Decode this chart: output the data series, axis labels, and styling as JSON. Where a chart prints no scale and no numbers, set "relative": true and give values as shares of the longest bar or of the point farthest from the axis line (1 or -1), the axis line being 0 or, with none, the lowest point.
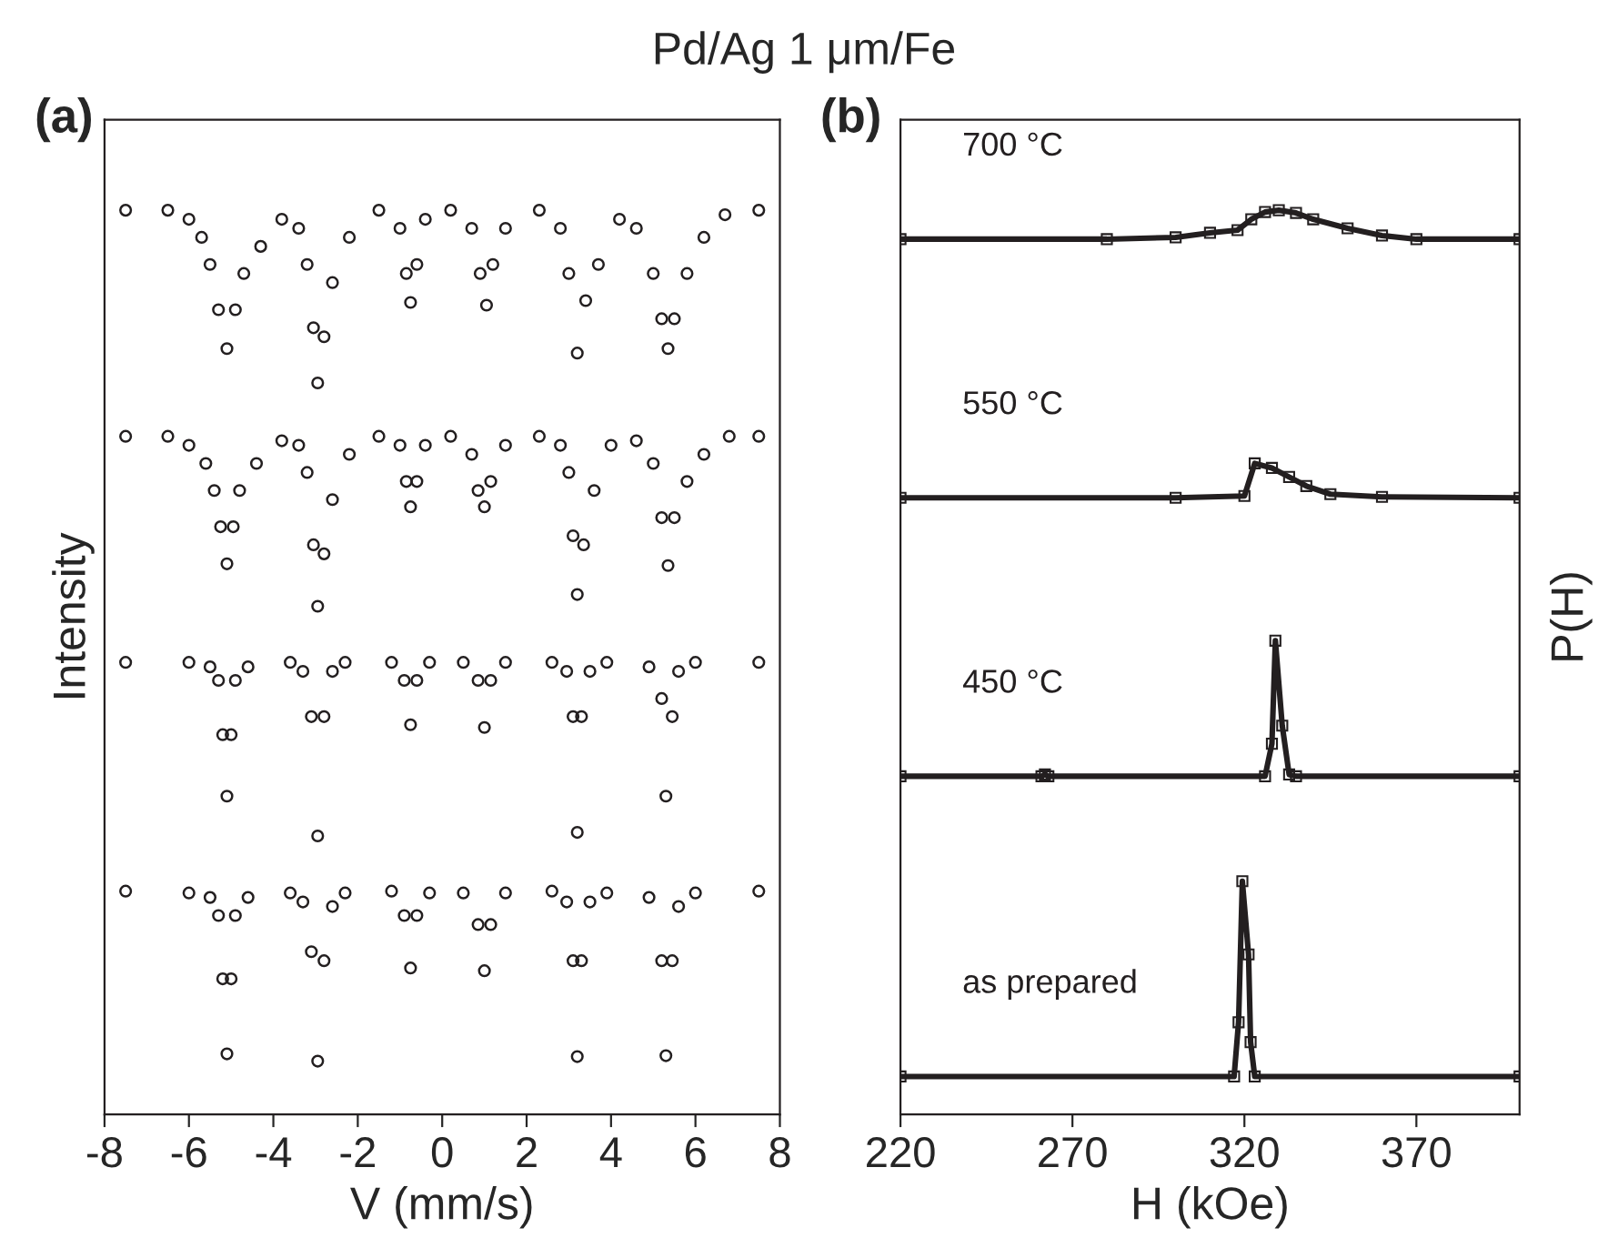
{
  "chart_data": [
    {
      "type": "scatter",
      "title": "Pd/Ag 1 μm/Fe",
      "annotations": [
        "(a)"
      ],
      "xlabel": "V (mm/s)",
      "ylabel": "Intensity",
      "relative": true,
      "xlim": [
        -8,
        8
      ],
      "xticks": [
        -8,
        -6,
        -4,
        -2,
        0,
        2,
        4,
        6,
        8
      ],
      "tick_labels": "x",
      "grid": false,
      "legend": false,
      "marker": "circle",
      "series": [
        {
          "color": "#231f20",
          "x": [
            -7.5,
            -6.5,
            -6.0,
            -5.7,
            -5.5,
            -5.3,
            -5.1,
            -4.9,
            -4.7,
            -4.3,
            -3.8,
            -3.4,
            -3.2,
            -3.05,
            -2.95,
            -2.8,
            -2.6,
            -2.2,
            -1.5,
            -1.0,
            -0.85,
            -0.75,
            -0.6,
            -0.4,
            0.2,
            0.7,
            0.9,
            1.05,
            1.2,
            1.5,
            2.3,
            2.8,
            3.0,
            3.2,
            3.4,
            3.7,
            4.2,
            4.6,
            5.0,
            5.2,
            5.35,
            5.5,
            5.8,
            6.2,
            6.7,
            7.5
          ],
          "values": [
            1.0,
            1.0,
            0.99,
            0.97,
            0.94,
            0.89,
            0.847,
            0.89,
            0.93,
            0.96,
            0.99,
            0.98,
            0.94,
            0.87,
            0.809,
            0.86,
            0.92,
            0.97,
            1.0,
            0.98,
            0.93,
            0.898,
            0.94,
            0.99,
            1.0,
            0.98,
            0.93,
            0.895,
            0.94,
            0.98,
            1.0,
            0.98,
            0.93,
            0.842,
            0.9,
            0.94,
            0.99,
            0.98,
            0.93,
            0.88,
            0.847,
            0.88,
            0.93,
            0.97,
            0.995,
            1.0
          ]
        },
        {
          "color": "#231f20",
          "x": [
            -7.5,
            -6.5,
            -6.0,
            -5.6,
            -5.4,
            -5.25,
            -5.1,
            -4.95,
            -4.8,
            -4.4,
            -3.8,
            -3.4,
            -3.2,
            -3.05,
            -2.95,
            -2.8,
            -2.6,
            -2.2,
            -1.5,
            -1.0,
            -0.85,
            -0.75,
            -0.6,
            -0.4,
            0.2,
            0.7,
            0.85,
            1.0,
            1.15,
            1.5,
            2.3,
            2.8,
            3.0,
            3.1,
            3.2,
            3.35,
            3.6,
            4.0,
            4.6,
            5.0,
            5.2,
            5.35,
            5.5,
            5.8,
            6.2,
            6.8,
            7.5
          ],
          "values": [
            0.75,
            0.75,
            0.74,
            0.72,
            0.69,
            0.65,
            0.609,
            0.65,
            0.69,
            0.72,
            0.745,
            0.74,
            0.71,
            0.63,
            0.562,
            0.62,
            0.68,
            0.73,
            0.75,
            0.74,
            0.7,
            0.672,
            0.7,
            0.74,
            0.75,
            0.73,
            0.69,
            0.672,
            0.7,
            0.74,
            0.75,
            0.74,
            0.71,
            0.64,
            0.575,
            0.63,
            0.69,
            0.74,
            0.745,
            0.72,
            0.66,
            0.607,
            0.66,
            0.7,
            0.73,
            0.75,
            0.75
          ]
        },
        {
          "color": "#231f20",
          "x": [
            -7.5,
            -6.0,
            -5.5,
            -5.3,
            -5.2,
            -5.1,
            -5.0,
            -4.9,
            -4.6,
            -3.6,
            -3.3,
            -3.1,
            -2.95,
            -2.8,
            -2.6,
            -2.3,
            -1.2,
            -0.9,
            -0.75,
            -0.6,
            -0.3,
            0.5,
            0.85,
            1.0,
            1.15,
            1.5,
            2.6,
            2.95,
            3.1,
            3.2,
            3.3,
            3.5,
            3.9,
            4.9,
            5.2,
            5.3,
            5.45,
            5.6,
            6.0,
            7.5
          ],
          "values": [
            0.5,
            0.5,
            0.495,
            0.48,
            0.42,
            0.352,
            0.42,
            0.48,
            0.495,
            0.5,
            0.49,
            0.44,
            0.308,
            0.44,
            0.49,
            0.5,
            0.5,
            0.48,
            0.431,
            0.48,
            0.5,
            0.5,
            0.48,
            0.428,
            0.48,
            0.5,
            0.5,
            0.49,
            0.44,
            0.312,
            0.44,
            0.49,
            0.5,
            0.495,
            0.46,
            0.352,
            0.44,
            0.49,
            0.5,
            0.5
          ]
        },
        {
          "color": "#231f20",
          "x": [
            -7.5,
            -6.0,
            -5.5,
            -5.3,
            -5.2,
            -5.1,
            -5.0,
            -4.9,
            -4.6,
            -3.6,
            -3.3,
            -3.1,
            -2.95,
            -2.8,
            -2.6,
            -2.3,
            -1.2,
            -0.9,
            -0.75,
            -0.6,
            -0.3,
            0.5,
            0.85,
            1.0,
            1.15,
            1.5,
            2.6,
            2.95,
            3.1,
            3.2,
            3.3,
            3.5,
            3.9,
            4.9,
            5.2,
            5.3,
            5.45,
            5.6,
            6.0,
            7.5
          ],
          "values": [
            0.247,
            0.245,
            0.24,
            0.22,
            0.15,
            0.067,
            0.15,
            0.22,
            0.24,
            0.245,
            0.235,
            0.18,
            0.059,
            0.17,
            0.23,
            0.245,
            0.247,
            0.22,
            0.162,
            0.22,
            0.245,
            0.245,
            0.21,
            0.159,
            0.21,
            0.245,
            0.247,
            0.235,
            0.17,
            0.064,
            0.17,
            0.235,
            0.245,
            0.24,
            0.17,
            0.065,
            0.17,
            0.23,
            0.245,
            0.247
          ]
        }
      ]
    },
    {
      "type": "line",
      "annotations": [
        "(b)"
      ],
      "xlabel": "H (kOe)",
      "ylabel": "P(H)",
      "relative": true,
      "xlim": [
        220,
        400
      ],
      "xticks": [
        220,
        270,
        320,
        370
      ],
      "tick_labels": "x",
      "grid": false,
      "legend": false,
      "marker": "square",
      "line_style": "solid",
      "series": [
        {
          "name": "700 °C",
          "color": "#231f20",
          "x": [
            220,
            280,
            300,
            310,
            318,
            322,
            326,
            330,
            335,
            340,
            350,
            360,
            370,
            400
          ],
          "values": [
            0.968,
            0.968,
            0.97,
            0.975,
            0.978,
            0.99,
            0.998,
            1.0,
            0.997,
            0.99,
            0.98,
            0.972,
            0.968,
            0.968
          ]
        },
        {
          "name": "550 °C",
          "color": "#231f20",
          "x": [
            220,
            300,
            320,
            323,
            328,
            333,
            338,
            345,
            360,
            400
          ],
          "values": [
            0.682,
            0.682,
            0.684,
            0.72,
            0.715,
            0.705,
            0.695,
            0.686,
            0.683,
            0.682
          ]
        },
        {
          "name": "450 °C",
          "color": "#231f20",
          "x": [
            220,
            261,
            262,
            263,
            326,
            328,
            329,
            331,
            333,
            335,
            400
          ],
          "values": [
            0.374,
            0.374,
            0.376,
            0.374,
            0.374,
            0.41,
            0.524,
            0.43,
            0.376,
            0.374,
            0.374
          ]
        },
        {
          "name": "as prepared",
          "color": "#231f20",
          "x": [
            220,
            317,
            318.3,
            319.4,
            321.2,
            321.8,
            323,
            400
          ],
          "values": [
            0.042,
            0.042,
            0.102,
            0.258,
            0.177,
            0.08,
            0.042,
            0.042
          ]
        }
      ]
    }
  ]
}
